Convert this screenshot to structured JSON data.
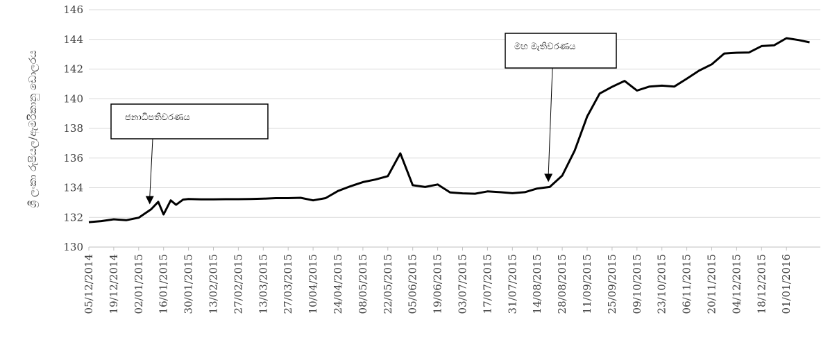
{
  "chart_data": {
    "type": "line",
    "title": "",
    "xlabel": "",
    "ylabel": "ශ්‍රී ලංකා රුපියල/ඇමරිකානු ඩොලරය",
    "ylim": [
      130,
      146
    ],
    "yticks": [
      130,
      132,
      134,
      136,
      138,
      140,
      142,
      144,
      146
    ],
    "grid": true,
    "legend": "none",
    "line_color": "#000000",
    "x_tick_labels": [
      "05/12/2014",
      "19/12/2014",
      "02/01/2015",
      "16/01/2015",
      "30/01/2015",
      "13/02/2015",
      "27/02/2015",
      "13/03/2015",
      "27/03/2015",
      "10/04/2015",
      "24/04/2015",
      "08/05/2015",
      "22/05/2015",
      "05/06/2015",
      "19/06/2015",
      "03/07/2015",
      "17/07/2015",
      "31/07/2015",
      "14/08/2015",
      "28/08/2015",
      "11/09/2015",
      "25/09/2015",
      "09/10/2015",
      "23/10/2015",
      "06/11/2015",
      "20/11/2015",
      "04/12/2015",
      "18/12/2015",
      "01/01/2016"
    ],
    "series": [
      {
        "points": [
          [
            "05/12/2014",
            131.68
          ],
          [
            "12/12/2014",
            131.75
          ],
          [
            "19/12/2014",
            131.87
          ],
          [
            "26/12/2014",
            131.81
          ],
          [
            "02/01/2015",
            131.98
          ],
          [
            "09/01/2015",
            132.55
          ],
          [
            "13/01/2015",
            133.05
          ],
          [
            "16/01/2015",
            132.2
          ],
          [
            "20/01/2015",
            133.15
          ],
          [
            "23/01/2015",
            132.85
          ],
          [
            "27/01/2015",
            133.2
          ],
          [
            "30/01/2015",
            133.24
          ],
          [
            "06/02/2015",
            133.22
          ],
          [
            "13/02/2015",
            133.22
          ],
          [
            "20/02/2015",
            133.23
          ],
          [
            "27/02/2015",
            133.23
          ],
          [
            "06/03/2015",
            133.24
          ],
          [
            "13/03/2015",
            133.26
          ],
          [
            "20/03/2015",
            133.3
          ],
          [
            "27/03/2015",
            133.3
          ],
          [
            "03/04/2015",
            133.32
          ],
          [
            "10/04/2015",
            133.15
          ],
          [
            "17/04/2015",
            133.3
          ],
          [
            "24/04/2015",
            133.78
          ],
          [
            "01/05/2015",
            134.1
          ],
          [
            "08/05/2015",
            134.38
          ],
          [
            "15/05/2015",
            134.55
          ],
          [
            "22/05/2015",
            134.78
          ],
          [
            "29/05/2015",
            136.32
          ],
          [
            "05/06/2015",
            134.17
          ],
          [
            "12/06/2015",
            134.05
          ],
          [
            "19/06/2015",
            134.22
          ],
          [
            "26/06/2015",
            133.68
          ],
          [
            "03/07/2015",
            133.62
          ],
          [
            "10/07/2015",
            133.6
          ],
          [
            "17/07/2015",
            133.75
          ],
          [
            "24/07/2015",
            133.7
          ],
          [
            "31/07/2015",
            133.63
          ],
          [
            "07/08/2015",
            133.7
          ],
          [
            "14/08/2015",
            133.95
          ],
          [
            "21/08/2015",
            134.05
          ],
          [
            "28/08/2015",
            134.82
          ],
          [
            "04/09/2015",
            136.5
          ],
          [
            "11/09/2015",
            138.8
          ],
          [
            "18/09/2015",
            140.35
          ],
          [
            "25/09/2015",
            140.8
          ],
          [
            "02/10/2015",
            141.2
          ],
          [
            "09/10/2015",
            140.55
          ],
          [
            "16/10/2015",
            140.82
          ],
          [
            "23/10/2015",
            140.88
          ],
          [
            "30/10/2015",
            140.82
          ],
          [
            "06/11/2015",
            141.35
          ],
          [
            "13/11/2015",
            141.9
          ],
          [
            "20/11/2015",
            142.32
          ],
          [
            "27/11/2015",
            143.05
          ],
          [
            "04/12/2015",
            143.1
          ],
          [
            "11/12/2015",
            143.12
          ],
          [
            "18/12/2015",
            143.55
          ],
          [
            "25/12/2015",
            143.6
          ],
          [
            "01/01/2016",
            144.08
          ],
          [
            "08/01/2016",
            143.95
          ],
          [
            "14/01/2016",
            143.8
          ]
        ]
      }
    ],
    "annotations": [
      {
        "text": "ජනාධිපතිවරණය",
        "x": "09/01/2015",
        "y": 132.55
      },
      {
        "text": "මහ මැතිවරණය",
        "x": "21/08/2015",
        "y": 134.05
      }
    ]
  }
}
